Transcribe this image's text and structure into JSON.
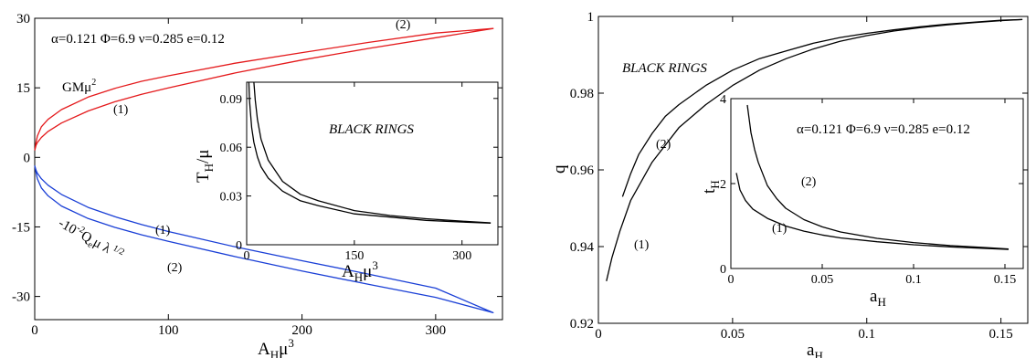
{
  "chart_data": [
    {
      "type": "line",
      "panel": "left-main",
      "xlabel": "A_H μ^3",
      "ylabel": "",
      "xlim": [
        0,
        350
      ],
      "ylim": [
        -35,
        30
      ],
      "x_ticks": [
        0,
        100,
        200,
        300
      ],
      "y_ticks": [
        -30,
        -15,
        0,
        15,
        30
      ],
      "x_tick_labels": [
        "0",
        "100",
        "200",
        "300"
      ],
      "y_tick_labels": [
        "-30",
        "-15",
        "0",
        "15",
        "30"
      ],
      "parameters_text": "α=0.121 Φ=6.9 ν=0.285 e=0.12",
      "series": [
        {
          "label": "GMμ²",
          "color": "#e41a1c",
          "branch_labels": [
            "(1)",
            "(2)"
          ],
          "x": [
            0,
            1,
            2,
            5,
            10,
            20,
            40,
            60,
            80,
            100,
            150,
            200,
            250,
            300,
            343,
            300,
            250,
            200,
            150,
            100,
            80,
            60,
            40,
            20,
            10,
            5,
            2,
            1,
            0
          ],
          "y": [
            1.5,
            2.6,
            3.2,
            4.3,
            5.6,
            7.4,
            10.0,
            12.0,
            13.6,
            15.0,
            18.2,
            21.0,
            23.5,
            25.8,
            27.8,
            26.8,
            24.8,
            22.6,
            20.3,
            17.6,
            16.4,
            14.9,
            13.0,
            10.3,
            8.2,
            6.6,
            4.6,
            3.3,
            1.5
          ]
        },
        {
          "label": "-10⁻²Q_e μ λ^(1/2)",
          "color": "#1a3fd6",
          "branch_labels": [
            "(1)",
            "(2)"
          ],
          "x": [
            0,
            1,
            2,
            5,
            10,
            20,
            40,
            60,
            80,
            100,
            150,
            200,
            250,
            300,
            343,
            300,
            250,
            200,
            150,
            100,
            80,
            60,
            40,
            20,
            10,
            5,
            2,
            1,
            0
          ],
          "y": [
            -1.8,
            -2.8,
            -3.4,
            -4.6,
            -6.0,
            -8.0,
            -10.8,
            -12.8,
            -14.5,
            -16.0,
            -19.3,
            -22.3,
            -25.2,
            -28.2,
            -33.5,
            -30.2,
            -27.4,
            -24.5,
            -21.4,
            -18.1,
            -16.7,
            -15.1,
            -13.2,
            -10.5,
            -8.3,
            -6.6,
            -4.6,
            -3.3,
            -1.8
          ]
        }
      ]
    },
    {
      "type": "line",
      "panel": "left-inset",
      "title": "BLACK RINGS",
      "xlabel": "A_H μ^3",
      "ylabel": "T_H/μ",
      "xlim": [
        0,
        350
      ],
      "ylim": [
        0,
        0.1
      ],
      "x_ticks": [
        0,
        150,
        300
      ],
      "y_ticks": [
        0,
        0.03,
        0.06,
        0.09
      ],
      "x_tick_labels": [
        "0",
        "150",
        "300"
      ],
      "y_tick_labels": [
        "0",
        "0.03",
        "0.06",
        "0.09"
      ],
      "series": [
        {
          "x": [
            10,
            12,
            15,
            20,
            30,
            50,
            75,
            100,
            150,
            200,
            250,
            300,
            340
          ],
          "y": [
            0.1,
            0.089,
            0.077,
            0.065,
            0.052,
            0.039,
            0.031,
            0.027,
            0.021,
            0.018,
            0.016,
            0.0145,
            0.0135
          ]
        },
        {
          "x": [
            3,
            4,
            5,
            7,
            10,
            15,
            20,
            30,
            50,
            75,
            100,
            150,
            200,
            250,
            300,
            340
          ],
          "y": [
            0.1,
            0.089,
            0.083,
            0.072,
            0.063,
            0.054,
            0.048,
            0.041,
            0.033,
            0.027,
            0.024,
            0.019,
            0.017,
            0.015,
            0.014,
            0.0133
          ]
        }
      ]
    },
    {
      "type": "line",
      "panel": "right-main",
      "title": "BLACK RINGS",
      "xlabel": "a_H",
      "ylabel": "q",
      "xlim": [
        0,
        0.16
      ],
      "ylim": [
        0.92,
        1.0
      ],
      "x_ticks": [
        0,
        0.05,
        0.1,
        0.15
      ],
      "y_ticks": [
        0.92,
        0.94,
        0.96,
        0.98,
        1.0
      ],
      "x_tick_labels": [
        "0",
        "0.05",
        "0.1",
        "0.15"
      ],
      "y_tick_labels": [
        "0.92",
        "0.94",
        "0.96",
        "0.98",
        "1"
      ],
      "series": [
        {
          "label": "(1)",
          "x": [
            0.003,
            0.005,
            0.008,
            0.012,
            0.02,
            0.03,
            0.04,
            0.05,
            0.06,
            0.07,
            0.08,
            0.09,
            0.1,
            0.11,
            0.12,
            0.13,
            0.14,
            0.15,
            0.158
          ],
          "y": [
            0.931,
            0.937,
            0.944,
            0.952,
            0.962,
            0.971,
            0.977,
            0.982,
            0.986,
            0.989,
            0.9915,
            0.9935,
            0.995,
            0.9962,
            0.9971,
            0.9978,
            0.9984,
            0.9989,
            0.9992
          ]
        },
        {
          "label": "(2)",
          "x": [
            0.009,
            0.012,
            0.015,
            0.02,
            0.025,
            0.03,
            0.04,
            0.05,
            0.06,
            0.07,
            0.08,
            0.09,
            0.1,
            0.11,
            0.12,
            0.13,
            0.14,
            0.15,
            0.158
          ],
          "y": [
            0.953,
            0.959,
            0.964,
            0.9695,
            0.974,
            0.977,
            0.982,
            0.986,
            0.989,
            0.991,
            0.993,
            0.9945,
            0.9956,
            0.9965,
            0.9973,
            0.998,
            0.9985,
            0.999,
            0.9992
          ]
        }
      ]
    },
    {
      "type": "line",
      "panel": "right-inset",
      "xlabel": "a_H",
      "ylabel": "t_H",
      "xlim": [
        0,
        0.16
      ],
      "ylim": [
        0,
        4
      ],
      "x_ticks": [
        0,
        0.05,
        0.1,
        0.15
      ],
      "y_ticks": [
        0,
        2,
        4
      ],
      "x_tick_labels": [
        "0",
        "0.05",
        "0.1",
        "0.15"
      ],
      "y_tick_labels": [
        "0",
        "2",
        "4"
      ],
      "parameters_text": "α=0.121 Φ=6.9 ν=0.285 e=0.12",
      "series": [
        {
          "label": "(1)",
          "x": [
            0.003,
            0.005,
            0.008,
            0.012,
            0.02,
            0.03,
            0.04,
            0.05,
            0.06,
            0.08,
            0.1,
            0.12,
            0.14,
            0.152
          ],
          "y": [
            2.25,
            1.85,
            1.6,
            1.4,
            1.18,
            1.0,
            0.88,
            0.79,
            0.72,
            0.63,
            0.56,
            0.51,
            0.47,
            0.45
          ]
        },
        {
          "label": "(2)",
          "x": [
            0.009,
            0.011,
            0.013,
            0.015,
            0.02,
            0.025,
            0.03,
            0.04,
            0.05,
            0.06,
            0.08,
            0.1,
            0.12,
            0.14,
            0.152
          ],
          "y": [
            3.85,
            3.2,
            2.8,
            2.5,
            1.95,
            1.65,
            1.42,
            1.15,
            0.98,
            0.86,
            0.71,
            0.61,
            0.54,
            0.49,
            0.46
          ]
        }
      ]
    }
  ]
}
